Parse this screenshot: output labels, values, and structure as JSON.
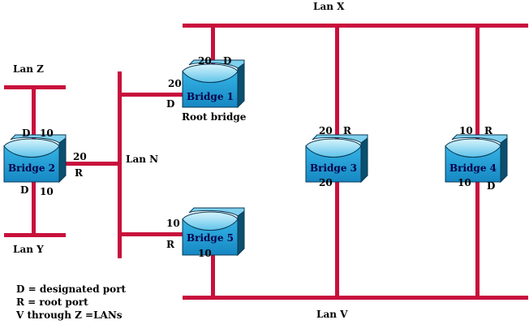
{
  "lans": {
    "x": "Lan X",
    "z": "Lan Z",
    "n": "Lan N",
    "y": "Lan Y",
    "v": "Lan V"
  },
  "bridges": {
    "b1": "Bridge 1",
    "b2": "Bridge 2",
    "b3": "Bridge 3",
    "b4": "Bridge 4",
    "b5": "Bridge 5"
  },
  "root_bridge_label": "Root bridge",
  "ports": {
    "b1_top_cost": "20",
    "b1_top_role": "D",
    "b1_left_cost": "20",
    "b1_left_role": "D",
    "b2_top_role": "D",
    "b2_top_cost": "10",
    "b2_right_cost": "20",
    "b2_right_role": "R",
    "b2_bottom_role": "D",
    "b2_bottom_cost": "10",
    "b3_top_cost": "20",
    "b3_top_role": "R",
    "b3_bottom_cost": "20",
    "b4_top_cost": "10",
    "b4_top_role": "R",
    "b4_bottom_cost": "10",
    "b4_bottom_role": "D",
    "b5_left_cost": "10",
    "b5_left_role": "R",
    "b5_bottom_cost": "10"
  },
  "legend": {
    "line1": "D = designated port",
    "line2": "R = root port",
    "line3": "V through Z =LANs"
  },
  "colors": {
    "lan_line": "#c8103c",
    "bridge_face": "#1e9fd6",
    "bridge_top": "#a9e4f6",
    "bridge_side": "#0b4f6e",
    "bridge_outline": "#0a3a55"
  }
}
